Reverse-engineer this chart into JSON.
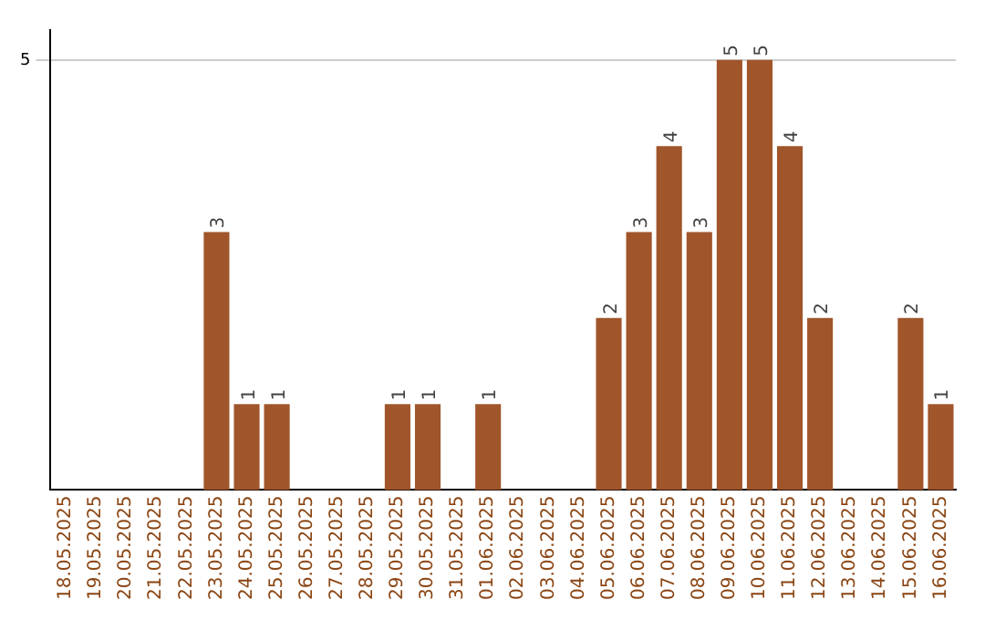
{
  "chart_data": {
    "type": "bar",
    "categories": [
      "18.05.2025",
      "19.05.2025",
      "20.05.2025",
      "21.05.2025",
      "22.05.2025",
      "23.05.2025",
      "24.05.2025",
      "25.05.2025",
      "26.05.2025",
      "27.05.2025",
      "28.05.2025",
      "29.05.2025",
      "30.05.2025",
      "31.05.2025",
      "01.06.2025",
      "02.06.2025",
      "03.06.2025",
      "04.06.2025",
      "05.06.2025",
      "06.06.2025",
      "07.06.2025",
      "08.06.2025",
      "09.06.2025",
      "10.06.2025",
      "11.06.2025",
      "12.06.2025",
      "13.06.2025",
      "14.06.2025",
      "15.06.2025",
      "16.06.2025"
    ],
    "values": [
      0,
      0,
      0,
      0,
      0,
      3,
      1,
      1,
      0,
      0,
      0,
      1,
      1,
      0,
      1,
      0,
      0,
      0,
      2,
      3,
      4,
      3,
      5,
      5,
      4,
      2,
      0,
      0,
      2,
      1
    ],
    "value_labels": [
      null,
      null,
      null,
      null,
      null,
      "3",
      "1",
      "1",
      null,
      null,
      null,
      "1",
      "1",
      null,
      "1",
      null,
      null,
      null,
      "2",
      "3",
      "4",
      "3",
      "5",
      "5",
      "4",
      "2",
      null,
      null,
      "2",
      "1"
    ],
    "color": "#a0552a",
    "ylim": [
      0,
      5.35
    ],
    "yticks": [
      5
    ],
    "grid": "y",
    "legend": false
  }
}
